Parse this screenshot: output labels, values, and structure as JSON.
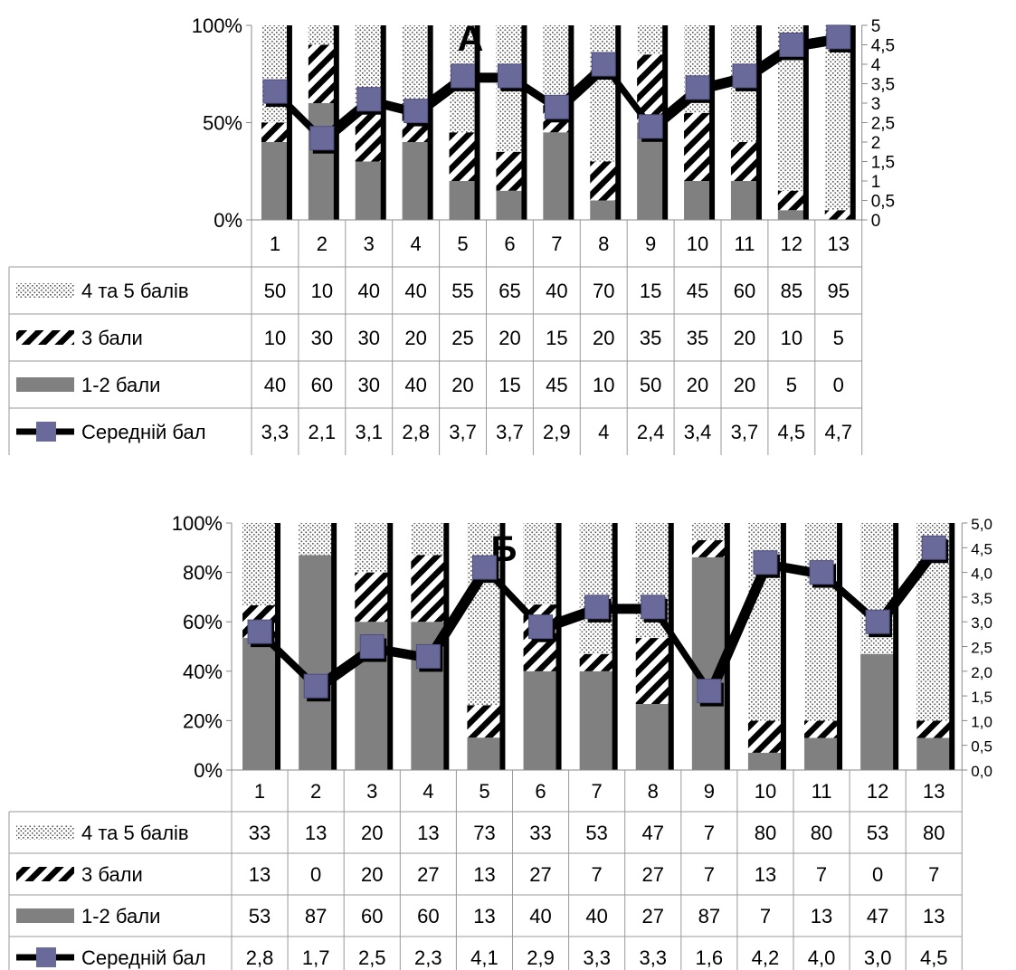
{
  "chart_data": [
    {
      "type": "bar",
      "stacked": true,
      "percent_stacked": true,
      "title": "А",
      "categories": [
        "1",
        "2",
        "3",
        "4",
        "5",
        "6",
        "7",
        "8",
        "9",
        "10",
        "11",
        "12",
        "13"
      ],
      "series": [
        {
          "name": "4 та 5 балів",
          "values": [
            50,
            10,
            40,
            40,
            55,
            65,
            40,
            70,
            15,
            45,
            60,
            85,
            95
          ]
        },
        {
          "name": "3 бали",
          "values": [
            10,
            30,
            30,
            20,
            25,
            20,
            15,
            20,
            35,
            35,
            20,
            10,
            5
          ]
        },
        {
          "name": "1-2 бали",
          "values": [
            40,
            60,
            30,
            40,
            20,
            15,
            45,
            10,
            50,
            20,
            20,
            5,
            0
          ]
        }
      ],
      "line_series": {
        "name": "Середній бал",
        "values": [
          3.3,
          2.1,
          3.1,
          2.8,
          3.7,
          3.7,
          2.9,
          4,
          2.4,
          3.4,
          3.7,
          4.5,
          4.7
        ],
        "labels": [
          "3,3",
          "2,1",
          "3,1",
          "2,8",
          "3,7",
          "3,7",
          "2,9",
          "4",
          "2,4",
          "3,4",
          "3,7",
          "4,5",
          "4,7"
        ],
        "axis": "secondary"
      },
      "y_ticks": [
        "0%",
        "50%",
        "100%"
      ],
      "ylim": [
        0,
        100
      ],
      "y2_ticks": [
        "0",
        "0,5",
        "1",
        "1,5",
        "2",
        "2,5",
        "3",
        "3,5",
        "4",
        "4,5",
        "5"
      ],
      "y2lim": [
        0,
        5
      ],
      "grid": false,
      "legend": "data-table"
    },
    {
      "type": "bar",
      "stacked": true,
      "percent_stacked": true,
      "title": "Б",
      "categories": [
        "1",
        "2",
        "3",
        "4",
        "5",
        "6",
        "7",
        "8",
        "9",
        "10",
        "11",
        "12",
        "13"
      ],
      "series": [
        {
          "name": "4 та 5 балів",
          "values": [
            33,
            13,
            20,
            13,
            73,
            33,
            53,
            47,
            7,
            80,
            80,
            53,
            80
          ]
        },
        {
          "name": "3 бали",
          "values": [
            13,
            0,
            20,
            27,
            13,
            27,
            7,
            27,
            7,
            13,
            7,
            0,
            7
          ]
        },
        {
          "name": "1-2 бали",
          "values": [
            53,
            87,
            60,
            60,
            13,
            40,
            40,
            27,
            87,
            7,
            13,
            47,
            13
          ]
        }
      ],
      "line_series": {
        "name": "Середній бал",
        "values": [
          2.8,
          1.7,
          2.5,
          2.3,
          4.1,
          2.9,
          3.3,
          3.3,
          1.6,
          4.2,
          4.0,
          3.0,
          4.5
        ],
        "labels": [
          "2,8",
          "1,7",
          "2,5",
          "2,3",
          "4,1",
          "2,9",
          "3,3",
          "3,3",
          "1,6",
          "4,2",
          "4,0",
          "3,0",
          "4,5"
        ],
        "axis": "secondary"
      },
      "y_ticks": [
        "0%",
        "20%",
        "40%",
        "60%",
        "80%",
        "100%"
      ],
      "ylim": [
        0,
        100
      ],
      "y2_ticks": [
        "0,0",
        "0,5",
        "1,0",
        "1,5",
        "2,0",
        "2,5",
        "3,0",
        "3,5",
        "4,0",
        "4,5",
        "5,0"
      ],
      "y2lim": [
        0,
        5
      ],
      "grid": false,
      "legend": "data-table"
    }
  ]
}
